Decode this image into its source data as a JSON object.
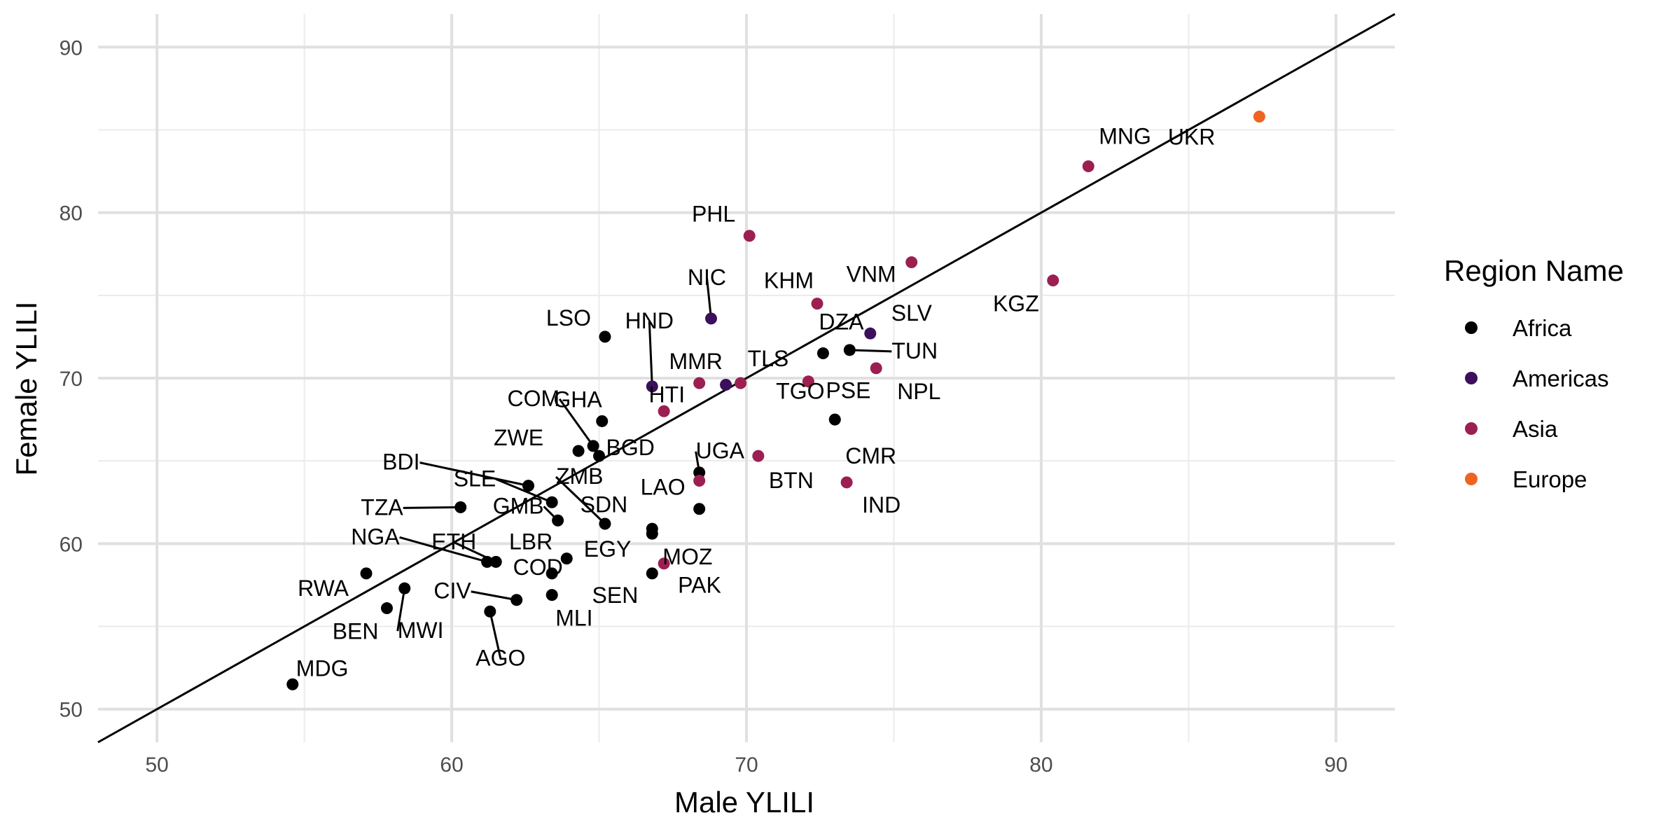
{
  "chart_data": {
    "type": "scatter",
    "xlabel": "Male YLILI",
    "ylabel": "Female YLILI",
    "xlim": [
      48,
      92
    ],
    "ylim": [
      48,
      92
    ],
    "x_ticks": [
      50,
      60,
      70,
      80,
      90
    ],
    "y_ticks": [
      50,
      60,
      70,
      80,
      90
    ],
    "grid": true,
    "reference_line": "y = x",
    "legend": {
      "title": "Region Name",
      "position": "right",
      "entries": [
        {
          "name": "Africa",
          "color": "#000000"
        },
        {
          "name": "Americas",
          "color": "#3b0f5c"
        },
        {
          "name": "Asia",
          "color": "#9c1f52"
        },
        {
          "name": "Europe",
          "color": "#ef6422"
        }
      ]
    },
    "points": [
      {
        "label": "UKR",
        "x": 87.4,
        "y": 85.8,
        "region": "Europe"
      },
      {
        "label": "MNG",
        "x": 81.6,
        "y": 82.8,
        "region": "Asia"
      },
      {
        "label": "PHL",
        "x": 70.1,
        "y": 78.6,
        "region": "Asia"
      },
      {
        "label": "VNM",
        "x": 75.6,
        "y": 77.0,
        "region": "Asia"
      },
      {
        "label": "KGZ",
        "x": 80.4,
        "y": 75.9,
        "region": "Asia"
      },
      {
        "label": "KHM",
        "x": 72.4,
        "y": 74.5,
        "region": "Asia"
      },
      {
        "label": "NIC",
        "x": 68.8,
        "y": 73.6,
        "region": "Americas"
      },
      {
        "label": "SLV",
        "x": 74.2,
        "y": 72.7,
        "region": "Americas"
      },
      {
        "label": "LSO",
        "x": 65.2,
        "y": 72.5,
        "region": "Africa"
      },
      {
        "label": "DZA",
        "x": 72.6,
        "y": 71.5,
        "region": "Africa"
      },
      {
        "label": "TUN",
        "x": 73.5,
        "y": 71.7,
        "region": "Africa"
      },
      {
        "label": "NPL",
        "x": 74.4,
        "y": 70.6,
        "region": "Asia"
      },
      {
        "label": "PSE",
        "x": 72.1,
        "y": 69.8,
        "region": "Asia"
      },
      {
        "label": "TLS",
        "x": 69.8,
        "y": 69.7,
        "region": "Asia"
      },
      {
        "label": "MMR",
        "x": 68.4,
        "y": 69.7,
        "region": "Asia"
      },
      {
        "label": "HND",
        "x": 66.8,
        "y": 69.5,
        "region": "Americas"
      },
      {
        "label": "HTI",
        "x": 69.3,
        "y": 69.6,
        "region": "Americas"
      },
      {
        "label": "TGO",
        "x": 67.2,
        "y": 68.0,
        "region": "Asia"
      },
      {
        "label": "CMR",
        "x": 73.0,
        "y": 67.5,
        "region": "Africa"
      },
      {
        "label": "GHA",
        "x": 65.1,
        "y": 67.4,
        "region": "Africa"
      },
      {
        "label": "COM",
        "x": 64.8,
        "y": 65.9,
        "region": "Africa"
      },
      {
        "label": "ZWE",
        "x": 64.3,
        "y": 65.6,
        "region": "Africa"
      },
      {
        "label": "BGD",
        "x": 65.0,
        "y": 65.3,
        "region": "Africa"
      },
      {
        "label": "UGA",
        "x": 68.4,
        "y": 64.3,
        "region": "Africa"
      },
      {
        "label": "BTN",
        "x": 70.4,
        "y": 65.3,
        "region": "Asia"
      },
      {
        "label": "LAO",
        "x": 68.4,
        "y": 63.8,
        "region": "Asia"
      },
      {
        "label": "IND",
        "x": 73.4,
        "y": 63.7,
        "region": "Asia"
      },
      {
        "label": "BDI",
        "x": 62.6,
        "y": 63.5,
        "region": "Africa"
      },
      {
        "label": "SLE",
        "x": 63.4,
        "y": 62.5,
        "region": "Africa"
      },
      {
        "label": "TZA",
        "x": 60.3,
        "y": 62.2,
        "region": "Africa"
      },
      {
        "label": "GMB",
        "x": 63.6,
        "y": 61.4,
        "region": "Africa"
      },
      {
        "label": "ZMB",
        "x": 65.2,
        "y": 61.2,
        "region": "Africa"
      },
      {
        "label": "SDN",
        "x": 68.4,
        "y": 62.1,
        "region": "Africa"
      },
      {
        "label": "MOZ",
        "x": 66.8,
        "y": 60.6,
        "region": "Africa"
      },
      {
        "label": "EGY",
        "x": 66.8,
        "y": 60.9,
        "region": "Africa"
      },
      {
        "label": "NGA",
        "x": 61.2,
        "y": 58.9,
        "region": "Africa"
      },
      {
        "label": "ETH",
        "x": 61.5,
        "y": 58.9,
        "region": "Africa"
      },
      {
        "label": "LBR",
        "x": 63.9,
        "y": 59.1,
        "region": "Africa"
      },
      {
        "label": "PAK",
        "x": 67.2,
        "y": 58.8,
        "region": "Asia"
      },
      {
        "label": "RWA",
        "x": 57.1,
        "y": 58.2,
        "region": "Africa"
      },
      {
        "label": "COD",
        "x": 63.4,
        "y": 58.2,
        "region": "Africa"
      },
      {
        "label": "SEN",
        "x": 66.8,
        "y": 58.2,
        "region": "Africa"
      },
      {
        "label": "MWI",
        "x": 58.4,
        "y": 57.3,
        "region": "Africa"
      },
      {
        "label": "CIV",
        "x": 62.2,
        "y": 56.6,
        "region": "Africa"
      },
      {
        "label": "MLI",
        "x": 63.4,
        "y": 56.9,
        "region": "Africa"
      },
      {
        "label": "BEN",
        "x": 57.8,
        "y": 56.1,
        "region": "Africa"
      },
      {
        "label": "AGO",
        "x": 61.3,
        "y": 55.9,
        "region": "Africa"
      },
      {
        "label": "MDG",
        "x": 54.6,
        "y": 51.5,
        "region": "Africa"
      }
    ]
  }
}
